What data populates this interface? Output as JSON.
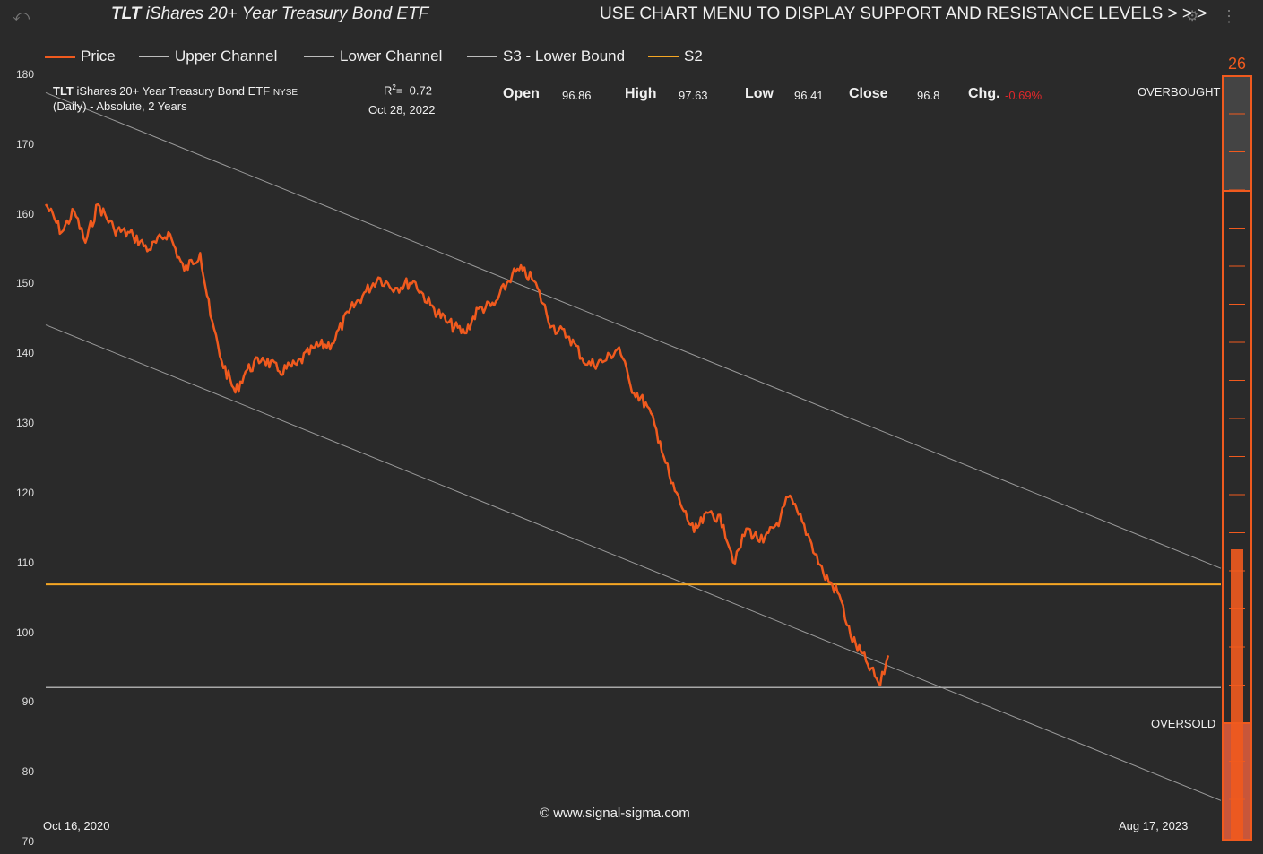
{
  "header": {
    "title_bold": "TLT",
    "title_rest": " iShares 20+ Year Treasury Bond ETF",
    "menu_hint": "USE CHART MENU TO DISPLAY SUPPORT AND RESISTANCE LEVELS > > >"
  },
  "legend": [
    {
      "label": "Price",
      "color": "#f05a1e"
    },
    {
      "label": "Upper Channel",
      "color": "#bdbdbd"
    },
    {
      "label": "Lower Channel",
      "color": "#bdbdbd"
    },
    {
      "label": "S3 - Lower Bound",
      "color": "#bdbdbd"
    },
    {
      "label": "S2",
      "color": "#f5a623"
    }
  ],
  "info": {
    "symbol": "TLT",
    "name": "iShares 20+ Year Treasury Bond ETF",
    "exchange": "NYSE",
    "subtitle": "(Daily) - Absolute, 2 Years",
    "r2_label": "R",
    "r2_sup": "2",
    "r2_eq": "=",
    "r2_value": "0.72",
    "date": "Oct 28, 2022",
    "open_label": "Open",
    "open": "96.86",
    "high_label": "High",
    "high": "97.63",
    "low_label": "Low",
    "low": "96.41",
    "close_label": "Close",
    "close": "96.8",
    "chg_label": "Chg.",
    "chg": "-0.69%"
  },
  "gauge": {
    "value": "26",
    "overbought_label": "OVERBOUGHT",
    "oversold_label": "OVERSOLD",
    "reading": 26
  },
  "footer": {
    "credit": "© www.signal-sigma.com",
    "x_start": "Oct 16, 2020",
    "x_end": "Aug 17, 2023"
  },
  "chart_data": {
    "type": "line",
    "ylim": [
      70,
      180
    ],
    "yticks": [
      180,
      170,
      160,
      150,
      140,
      130,
      120,
      110,
      100,
      90,
      80,
      70
    ],
    "x_dates": [
      "2020-10-16",
      "2023-08-17"
    ],
    "series": [
      {
        "name": "Price",
        "color": "#f05a1e",
        "points": [
          [
            "2020-10-16",
            161.5
          ],
          [
            "2020-10-30",
            157.5
          ],
          [
            "2020-11-10",
            160.5
          ],
          [
            "2020-11-20",
            156.0
          ],
          [
            "2020-12-01",
            161.5
          ],
          [
            "2020-12-15",
            158.0
          ],
          [
            "2021-01-01",
            157.0
          ],
          [
            "2021-01-15",
            155.0
          ],
          [
            "2021-02-01",
            157.5
          ],
          [
            "2021-02-15",
            152.0
          ],
          [
            "2021-03-01",
            154.5
          ],
          [
            "2021-03-10",
            145.5
          ],
          [
            "2021-03-20",
            139.0
          ],
          [
            "2021-04-01",
            134.5
          ],
          [
            "2021-04-10",
            137.5
          ],
          [
            "2021-04-25",
            139.5
          ],
          [
            "2021-05-10",
            137.5
          ],
          [
            "2021-05-25",
            138.5
          ],
          [
            "2021-06-10",
            141.0
          ],
          [
            "2021-06-25",
            141.5
          ],
          [
            "2021-07-10",
            146.0
          ],
          [
            "2021-07-25",
            149.0
          ],
          [
            "2021-08-05",
            151.0
          ],
          [
            "2021-08-20",
            149.5
          ],
          [
            "2021-09-05",
            150.5
          ],
          [
            "2021-09-20",
            147.0
          ],
          [
            "2021-10-05",
            144.5
          ],
          [
            "2021-10-20",
            143.0
          ],
          [
            "2021-11-01",
            146.5
          ],
          [
            "2021-11-15",
            147.0
          ],
          [
            "2021-12-01",
            151.5
          ],
          [
            "2021-12-10",
            152.0
          ],
          [
            "2021-12-20",
            150.5
          ],
          [
            "2022-01-05",
            144.0
          ],
          [
            "2022-01-20",
            142.5
          ],
          [
            "2022-02-05",
            138.5
          ],
          [
            "2022-02-20",
            139.0
          ],
          [
            "2022-03-05",
            141.0
          ],
          [
            "2022-03-15",
            135.5
          ],
          [
            "2022-03-30",
            132.5
          ],
          [
            "2022-04-10",
            127.5
          ],
          [
            "2022-04-20",
            121.5
          ],
          [
            "2022-05-01",
            117.5
          ],
          [
            "2022-05-10",
            114.5
          ],
          [
            "2022-05-25",
            117.5
          ],
          [
            "2022-06-05",
            115.5
          ],
          [
            "2022-06-15",
            110.0
          ],
          [
            "2022-06-25",
            115.0
          ],
          [
            "2022-07-10",
            113.0
          ],
          [
            "2022-07-25",
            116.5
          ],
          [
            "2022-08-01",
            119.5
          ],
          [
            "2022-08-10",
            117.0
          ],
          [
            "2022-08-20",
            113.5
          ],
          [
            "2022-09-01",
            108.5
          ],
          [
            "2022-09-15",
            105.5
          ],
          [
            "2022-09-25",
            99.5
          ],
          [
            "2022-10-10",
            95.5
          ],
          [
            "2022-10-21",
            92.5
          ],
          [
            "2022-10-28",
            96.8
          ]
        ]
      },
      {
        "name": "Upper Channel",
        "color": "#9a9a9a",
        "points": [
          [
            "2020-10-16",
            177.5
          ],
          [
            "2023-08-17",
            109.3
          ]
        ]
      },
      {
        "name": "Lower Channel",
        "color": "#9a9a9a",
        "points": [
          [
            "2020-10-16",
            144.2
          ],
          [
            "2023-08-17",
            76.0
          ]
        ]
      },
      {
        "name": "S3 - Lower Bound",
        "color": "#a8a8a8",
        "points": [
          [
            "2020-10-16",
            92.2
          ],
          [
            "2023-08-17",
            92.2
          ]
        ]
      },
      {
        "name": "S2",
        "color": "#f5a623",
        "points": [
          [
            "2020-10-16",
            107.0
          ],
          [
            "2023-08-17",
            107.0
          ]
        ]
      }
    ]
  }
}
